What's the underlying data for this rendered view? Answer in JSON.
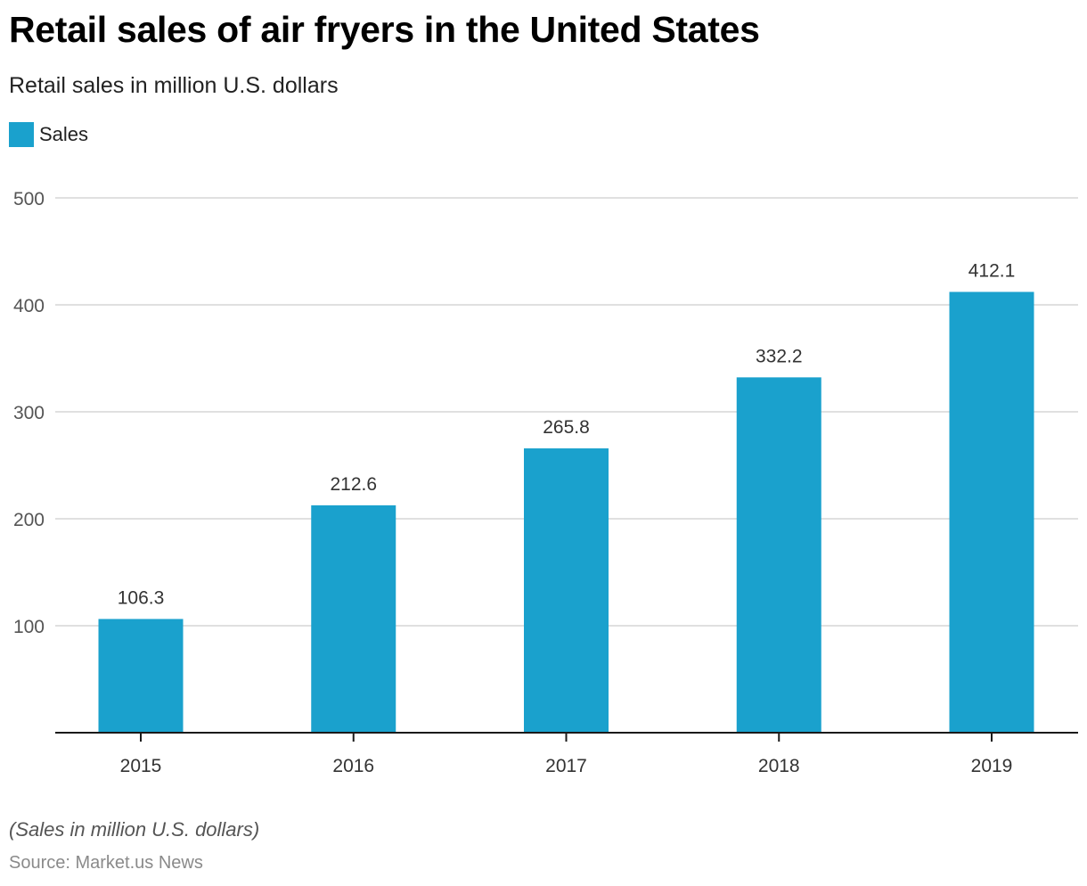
{
  "header": {
    "title": "Retail sales of air fryers in the United States",
    "subtitle": "Retail sales in million U.S. dollars"
  },
  "footer": {
    "note": "(Sales in million U.S. dollars)",
    "source": "Source: Market.us News"
  },
  "colors": {
    "bar": "#1aa1cd",
    "grid": "#d6d6d6",
    "axis": "#1a1a1a",
    "tick_text": "#555555",
    "label_text": "#333333"
  },
  "chart_data": {
    "type": "bar",
    "title": "Retail sales of air fryers in the United States",
    "subtitle": "Retail sales in million U.S. dollars",
    "xlabel": "",
    "ylabel": "",
    "categories": [
      "2015",
      "2016",
      "2017",
      "2018",
      "2019"
    ],
    "series": [
      {
        "name": "Sales",
        "values": [
          106.3,
          212.6,
          265.8,
          332.2,
          412.1
        ]
      }
    ],
    "data_labels": [
      "106.3",
      "212.6",
      "265.8",
      "332.2",
      "412.1"
    ],
    "ylim": [
      0,
      500
    ],
    "yticks": [
      100,
      200,
      300,
      400,
      500
    ],
    "grid": true,
    "legend": {
      "position": "top-left",
      "entries": [
        "Sales"
      ]
    }
  }
}
